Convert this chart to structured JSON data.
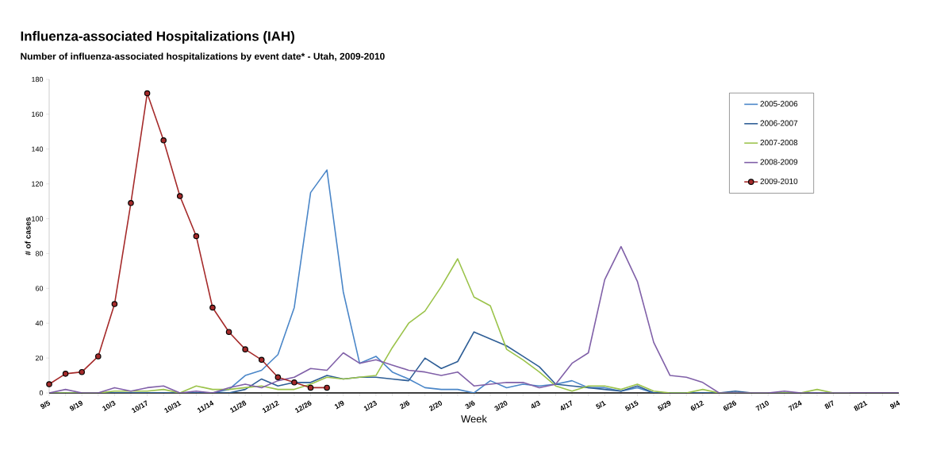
{
  "chart_data": {
    "type": "line",
    "title": "Influenza-associated Hospitalizations (IAH)",
    "subtitle": "Number of influenza-associated hospitalizations by event date* - Utah, 2009-2010",
    "xlabel": "Week",
    "ylabel": "# of cases",
    "categories": [
      "9/5",
      null,
      "9/19",
      null,
      "10/3",
      null,
      "10/17",
      null,
      "10/31",
      null,
      "11/14",
      null,
      "11/28",
      null,
      "12/12",
      null,
      "12/26",
      null,
      "1/9",
      null,
      "1/23",
      null,
      "2/6",
      null,
      "2/20",
      null,
      "3/6",
      null,
      "3/20",
      null,
      "4/3",
      null,
      "4/17",
      null,
      "5/1",
      null,
      "5/15",
      null,
      "5/29",
      null,
      "6/12",
      null,
      "6/26",
      null,
      "7/10",
      null,
      "7/24",
      null,
      "8/7",
      null,
      "8/21",
      null,
      "9/4"
    ],
    "series": [
      {
        "name": "2005-2006",
        "color": "#4a86c8",
        "values": [
          0,
          0,
          0,
          0,
          0,
          0,
          0,
          0,
          0,
          0,
          0,
          2,
          10,
          13,
          22,
          49,
          115,
          128,
          58,
          17,
          21,
          12,
          8,
          3,
          2,
          2,
          0,
          7,
          3,
          5,
          4,
          5,
          7,
          3,
          3,
          1,
          3,
          0,
          0,
          0,
          0,
          0,
          0,
          0,
          0,
          0,
          0,
          0,
          0,
          0,
          null,
          null,
          null
        ]
      },
      {
        "name": "2006-2007",
        "color": "#2e5e96",
        "values": [
          0,
          0,
          0,
          0,
          0,
          0,
          0,
          0,
          0,
          0,
          0,
          0,
          2,
          8,
          4,
          6,
          6,
          10,
          8,
          9,
          9,
          8,
          7,
          20,
          14,
          18,
          35,
          31,
          27,
          21,
          15,
          5,
          4,
          3,
          2,
          1,
          4,
          0,
          0,
          0,
          0,
          0,
          1,
          0,
          0,
          0,
          0,
          0,
          null,
          null,
          null,
          null,
          null
        ]
      },
      {
        "name": "2007-2008",
        "color": "#9bc34a",
        "values": [
          0,
          0,
          0,
          0,
          1,
          1,
          1,
          2,
          0,
          4,
          2,
          2,
          3,
          4,
          2,
          2,
          5,
          9,
          8,
          9,
          10,
          26,
          40,
          47,
          61,
          77,
          55,
          50,
          25,
          19,
          12,
          4,
          1,
          4,
          4,
          2,
          5,
          1,
          0,
          0,
          2,
          0,
          0,
          0,
          0,
          0,
          0,
          2,
          0,
          0,
          null,
          null,
          null
        ]
      },
      {
        "name": "2008-2009",
        "color": "#8060a8",
        "values": [
          0,
          2,
          0,
          0,
          3,
          1,
          3,
          4,
          0,
          1,
          0,
          3,
          5,
          3,
          7,
          9,
          14,
          13,
          23,
          17,
          19,
          16,
          13,
          12,
          10,
          12,
          4,
          5,
          6,
          6,
          3,
          5,
          17,
          23,
          65,
          84,
          64,
          29,
          10,
          9,
          6,
          0,
          0,
          0,
          0,
          1,
          0,
          0,
          0,
          0,
          0,
          0,
          0
        ]
      },
      {
        "name": "2009-2010",
        "color": "#a52a2a",
        "marker": "circle",
        "values": [
          5,
          11,
          12,
          21,
          51,
          109,
          172,
          145,
          113,
          90,
          49,
          35,
          25,
          19,
          9,
          6,
          3,
          3,
          null,
          null,
          null,
          null,
          null,
          null,
          null,
          null,
          null,
          null,
          null,
          null,
          null,
          null,
          null,
          null,
          null,
          null,
          null,
          null,
          null,
          null,
          null,
          null,
          null,
          null,
          null,
          null,
          null,
          null,
          null,
          null,
          null,
          null,
          null
        ]
      }
    ],
    "ylim": [
      0,
      180
    ],
    "yticks": [
      0,
      20,
      40,
      60,
      80,
      100,
      120,
      140,
      160,
      180
    ],
    "grid": false,
    "legend": "top right"
  }
}
